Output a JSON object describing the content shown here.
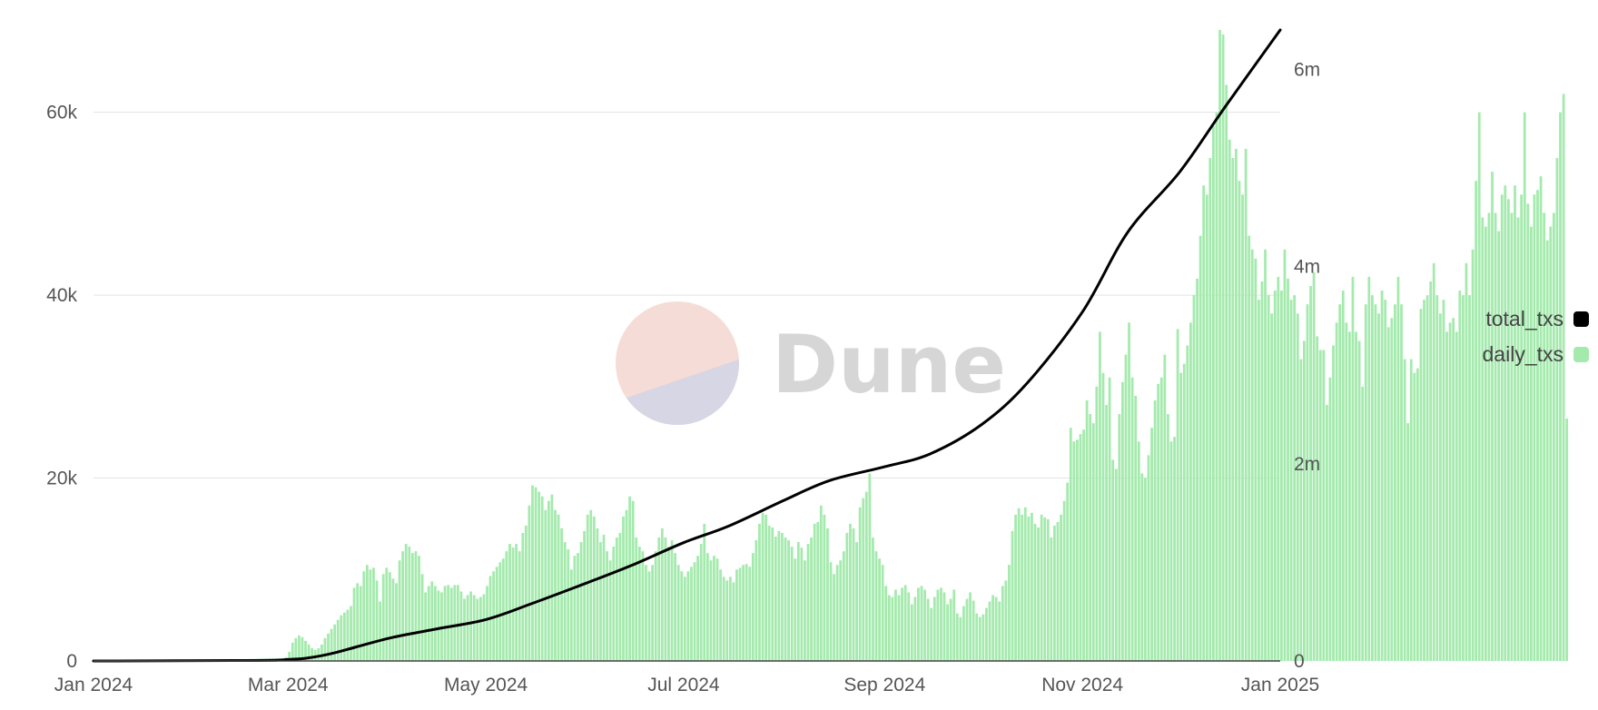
{
  "chart_data": {
    "type": "bar+line",
    "watermark": "Dune",
    "x_axis": {
      "type": "date",
      "range": [
        "2024-01-01",
        "2025-01-01"
      ],
      "ticks": [
        {
          "date": "2024-01-01",
          "label": "Jan 2024"
        },
        {
          "date": "2024-03-01",
          "label": "Mar 2024"
        },
        {
          "date": "2024-05-01",
          "label": "May 2024"
        },
        {
          "date": "2024-07-01",
          "label": "Jul 2024"
        },
        {
          "date": "2024-09-01",
          "label": "Sep 2024"
        },
        {
          "date": "2024-11-01",
          "label": "Nov 2024"
        },
        {
          "date": "2025-01-01",
          "label": "Jan 2025"
        }
      ]
    },
    "y_left": {
      "range": [
        0,
        69000
      ],
      "ticks": [
        {
          "value": 0,
          "label": "0"
        },
        {
          "value": 20000,
          "label": "20k"
        },
        {
          "value": 40000,
          "label": "40k"
        },
        {
          "value": 60000,
          "label": "60k"
        }
      ],
      "grid": true
    },
    "y_right": {
      "range": [
        0,
        6400000
      ],
      "ticks": [
        {
          "value": 0,
          "label": "0"
        },
        {
          "value": 2000000,
          "label": "2m"
        },
        {
          "value": 4000000,
          "label": "4m"
        },
        {
          "value": 6000000,
          "label": "6m"
        }
      ]
    },
    "legend": {
      "position": "right",
      "items": [
        {
          "label": "total_txs",
          "color": "#000000"
        },
        {
          "label": "daily_txs",
          "color": "#a4eaad"
        }
      ]
    },
    "series": [
      {
        "name": "daily_txs",
        "type": "bar",
        "axis": "left",
        "color": "#a4eaad",
        "start": "2024-01-01",
        "frequency": "daily",
        "values": [
          50,
          60,
          60,
          70,
          70,
          80,
          80,
          90,
          90,
          100,
          100,
          110,
          110,
          120,
          120,
          130,
          130,
          140,
          140,
          150,
          150,
          160,
          170,
          180,
          190,
          200,
          180,
          170,
          160,
          150,
          140,
          130,
          130,
          120,
          120,
          120,
          130,
          130,
          140,
          140,
          150,
          150,
          160,
          170,
          180,
          190,
          200,
          210,
          220,
          230,
          240,
          250,
          260,
          270,
          280,
          290,
          300,
          300,
          300,
          400,
          1000,
          2000,
          2500,
          2800,
          2600,
          2200,
          1800,
          1400,
          1200,
          1400,
          1800,
          2500,
          3000,
          3500,
          4000,
          4500,
          5000,
          5300,
          5600,
          6000,
          8000,
          8500,
          8200,
          9800,
          10500,
          10000,
          10200,
          8800,
          6500,
          9500,
          10200,
          9700,
          9000,
          8500,
          11000,
          12000,
          12800,
          12500,
          11800,
          12000,
          11500,
          9500,
          7500,
          8200,
          8700,
          8200,
          7700,
          7500,
          8200,
          8300,
          8000,
          8300,
          8300,
          7600,
          6800,
          7200,
          7600,
          7200,
          6800,
          7000,
          7300,
          8200,
          9300,
          9800,
          10300,
          10800,
          11200,
          12000,
          12800,
          12400,
          12800,
          12000,
          14000,
          14800,
          17000,
          19200,
          19000,
          18500,
          18000,
          16500,
          17500,
          18200,
          16500,
          16000,
          14500,
          13000,
          12200,
          10000,
          11500,
          11800,
          13000,
          14200,
          16000,
          16500,
          15800,
          14500,
          13000,
          13800,
          12000,
          11000,
          12500,
          13500,
          14000,
          15800,
          16500,
          18000,
          17500,
          13500,
          12500,
          12000,
          10500,
          9800,
          10500,
          12000,
          13500,
          14500,
          13500,
          12500,
          13200,
          11800,
          10500,
          9800,
          9200,
          9800,
          10300,
          10800,
          11500,
          12800,
          15000,
          11800,
          11000,
          11500,
          11200,
          10000,
          9200,
          8800,
          9200,
          8600,
          10000,
          10200,
          10500,
          10600,
          10300,
          11800,
          13200,
          15000,
          16200,
          16000,
          14800,
          14600,
          13600,
          14200,
          14000,
          13500,
          13200,
          12500,
          11200,
          13000,
          12400,
          11000,
          12800,
          13500,
          15000,
          15200,
          17000,
          16000,
          14500,
          10800,
          9500,
          10500,
          11000,
          12000,
          14000,
          15000,
          14500,
          13000,
          16800,
          17800,
          18500,
          20500,
          13500,
          12000,
          11200,
          10500,
          8200,
          7200,
          7000,
          7800,
          7200,
          8000,
          8300,
          7500,
          6200,
          7000,
          8000,
          8200,
          7800,
          6800,
          5800,
          7000,
          7800,
          8000,
          7500,
          6200,
          6800,
          7800,
          5200,
          4800,
          6000,
          6800,
          7500,
          6600,
          5200,
          4800,
          5100,
          5800,
          6500,
          7200,
          7000,
          6500,
          8200,
          8800,
          10500,
          14200,
          16000,
          16700,
          16000,
          16800,
          15800,
          16200,
          15000,
          14600,
          16000,
          15700,
          15500,
          13500,
          14800,
          15200,
          16000,
          17500,
          19500,
          25500,
          24000,
          24200,
          24800,
          25300,
          28500,
          27000,
          26000,
          30000,
          36000,
          31500,
          28000,
          31000,
          22000,
          21000,
          27000,
          30500,
          33500,
          37000,
          31000,
          29000,
          24000,
          20500,
          20000,
          22500,
          25500,
          28500,
          30300,
          31000,
          33500,
          27000,
          24000,
          24500,
          36300,
          31500,
          32500,
          34500,
          37000,
          40000,
          41800,
          46500,
          52000,
          51000,
          55000,
          58500,
          60000,
          69000,
          68500,
          63000,
          57000,
          55000,
          56000,
          52500,
          51000,
          56000,
          46500,
          45000,
          44000,
          39500,
          41500,
          45000,
          40000,
          38000,
          40500,
          42000,
          40500,
          45000,
          41800,
          39500,
          40000,
          38000,
          33000,
          35000,
          39000,
          41000,
          42500,
          35500,
          34000,
          34000,
          28000,
          31000,
          34500,
          37000,
          39000,
          40500,
          37000,
          36000,
          42000,
          36000,
          35000,
          30000,
          39000,
          42000,
          40000,
          39000,
          38000,
          40500,
          39500,
          36500,
          37500,
          39000,
          42000,
          39000,
          33000,
          26000,
          33000,
          31500,
          32000,
          38500,
          39500,
          40000,
          41500,
          43500,
          40000,
          38000,
          39500,
          36000,
          37000,
          37500,
          36000,
          40500,
          40000,
          43500,
          40000,
          45000,
          52500,
          60000,
          48500,
          47500,
          49000,
          53500,
          49000,
          47000,
          51000,
          52000,
          50500,
          49000,
          52000,
          48500,
          51000,
          60000,
          50000,
          47500,
          51000,
          51500,
          53000,
          49000,
          46000,
          47500,
          49000,
          55000,
          60000,
          62000,
          26500
        ]
      },
      {
        "name": "total_txs",
        "type": "line",
        "axis": "right",
        "color": "#000000",
        "points": [
          [
            "2024-01-01",
            0
          ],
          [
            "2024-02-20",
            5000
          ],
          [
            "2024-03-01",
            15000
          ],
          [
            "2024-03-07",
            30000
          ],
          [
            "2024-03-15",
            80000
          ],
          [
            "2024-04-01",
            230000
          ],
          [
            "2024-04-15",
            320000
          ],
          [
            "2024-05-01",
            420000
          ],
          [
            "2024-05-15",
            580000
          ],
          [
            "2024-06-01",
            790000
          ],
          [
            "2024-06-15",
            970000
          ],
          [
            "2024-07-01",
            1200000
          ],
          [
            "2024-07-15",
            1370000
          ],
          [
            "2024-08-01",
            1630000
          ],
          [
            "2024-08-15",
            1830000
          ],
          [
            "2024-09-01",
            1970000
          ],
          [
            "2024-09-15",
            2100000
          ],
          [
            "2024-10-01",
            2400000
          ],
          [
            "2024-10-15",
            2820000
          ],
          [
            "2024-11-01",
            3540000
          ],
          [
            "2024-11-15",
            4350000
          ],
          [
            "2024-12-01",
            4960000
          ],
          [
            "2024-12-15",
            5620000
          ],
          [
            "2025-01-01",
            6400000
          ]
        ]
      }
    ]
  }
}
